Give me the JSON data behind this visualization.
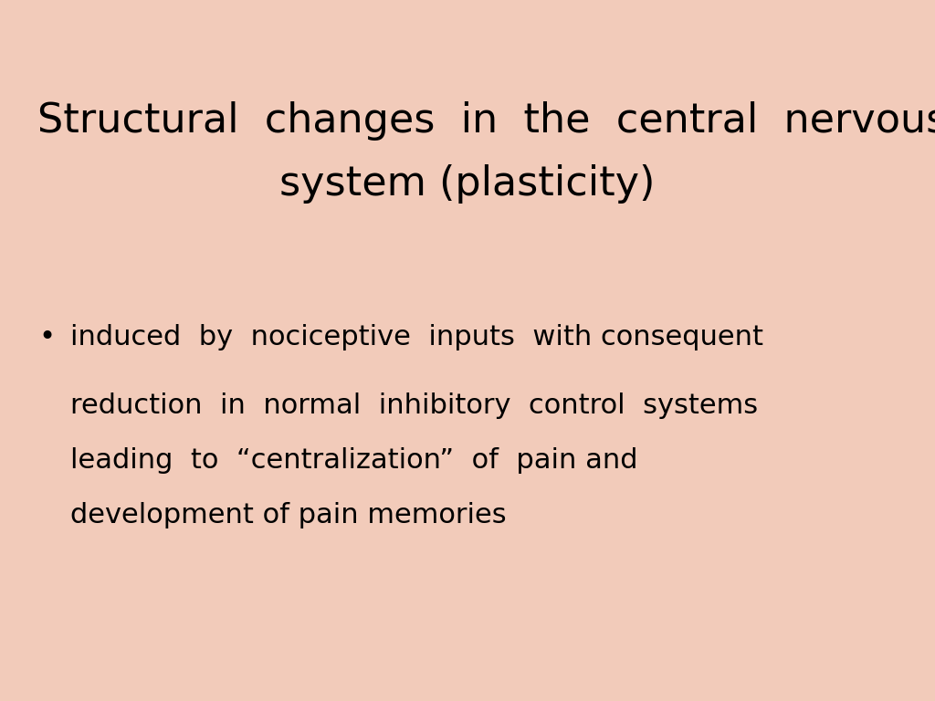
{
  "background_color": "#F2CBBA",
  "title_line1": "Structural  changes  in  the  central  nervous",
  "title_line2": "system (plasticity)",
  "title_fontsize": 32,
  "title_color": "#000000",
  "bullet_char": "•",
  "bullet_fontsize": 22,
  "text_line1": "induced  by  nociceptive  inputs  with consequent",
  "text_line2": "reduction  in  normal  inhibitory  control  systems",
  "text_line3": "leading  to  “centralization”  of  pain and",
  "text_line4": "development of pain memories",
  "text_fontsize": 22,
  "text_color": "#000000",
  "font_family": "DejaVu Sans"
}
